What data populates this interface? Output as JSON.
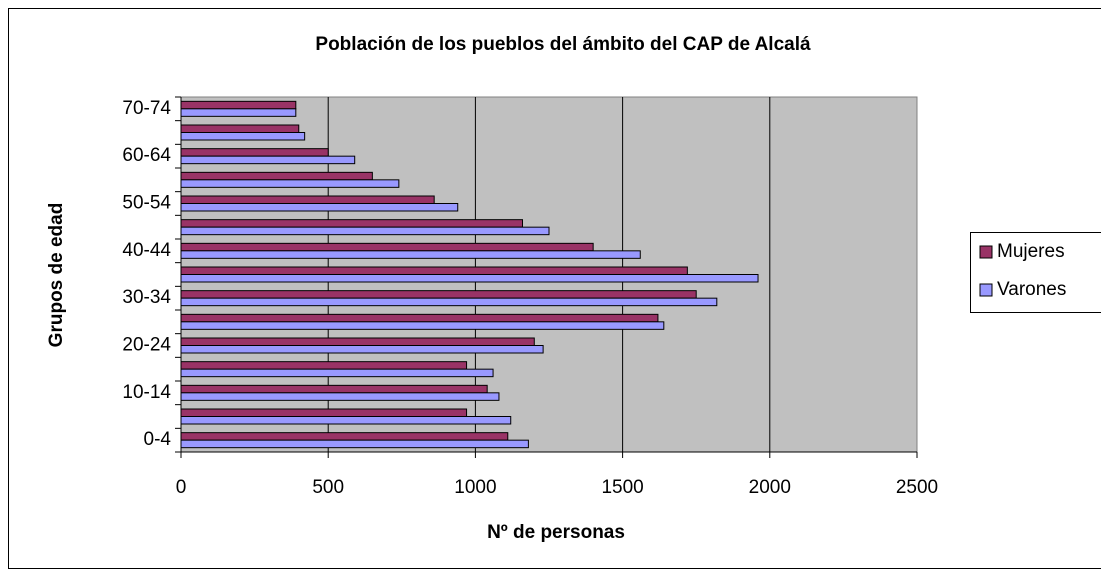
{
  "chart_data": {
    "type": "barh",
    "title": "Población de los pueblos del ámbito del CAP de Alcalá",
    "x_label": "Nº de personas",
    "y_label": "Grupos de edad",
    "categories": [
      "0-4",
      null,
      "10-14",
      null,
      "20-24",
      null,
      "30-34",
      null,
      "40-44",
      null,
      "50-54",
      null,
      "60-64",
      null,
      "70-74"
    ],
    "series": [
      {
        "name": "Mujeres",
        "color": "#993366",
        "values": [
          1110,
          970,
          1040,
          970,
          1200,
          1620,
          1750,
          1720,
          1400,
          1160,
          860,
          650,
          500,
          400,
          390
        ]
      },
      {
        "name": "Varones",
        "color": "#9999ff",
        "values": [
          1180,
          1120,
          1080,
          1060,
          1230,
          1640,
          1820,
          1960,
          1560,
          1250,
          940,
          740,
          590,
          420,
          390
        ]
      }
    ],
    "xlim": [
      0,
      2500
    ],
    "xticks": [
      0,
      500,
      1000,
      1500,
      2000,
      2500
    ],
    "grid": true,
    "legend": "right"
  }
}
